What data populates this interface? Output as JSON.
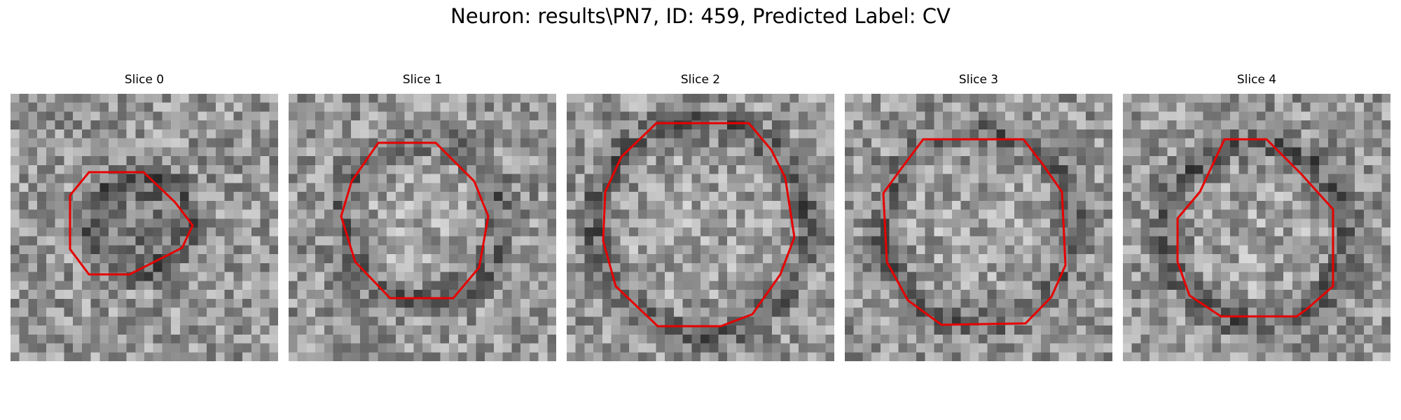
{
  "figure": {
    "title": "Neuron: results\\PN7, ID: 459, Predicted Label: CV"
  },
  "panels": [
    {
      "title": "Slice 0"
    },
    {
      "title": "Slice 1"
    },
    {
      "title": "Slice 2"
    },
    {
      "title": "Slice 3"
    },
    {
      "title": "Slice 4"
    }
  ],
  "colors": {
    "contour": "#e60000",
    "background": "#ffffff"
  }
}
